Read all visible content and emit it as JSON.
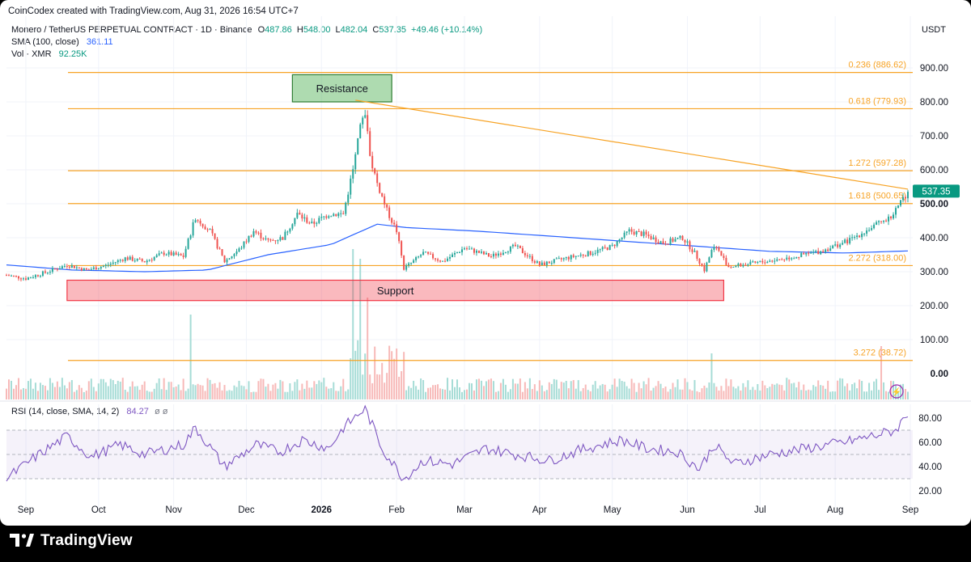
{
  "header": {
    "attribution": "CoinCodex created with TradingView.com, Aug 31, 2026 16:54 UTC+7"
  },
  "legend": {
    "symbol": "Monero / TetherUS PERPETUAL CONTRACT · 1D · Binance",
    "o_label": "O",
    "o": "487.86",
    "h_label": "H",
    "h": "548.00",
    "l_label": "L",
    "l": "482.04",
    "c_label": "C",
    "c": "537.35",
    "change": "+49.46 (+10.14%)",
    "sma_label": "SMA (100, close)",
    "sma_value": "361.11",
    "vol_label": "Vol · XMR",
    "vol_value": "92.25",
    "vol_unit": "K",
    "rsi_label": "RSI (14, close, SMA, 14, 2)",
    "rsi_value": "84.27",
    "rsi_eye": "ø ø"
  },
  "currency": "USDT",
  "branding": {
    "name": "TradingView"
  },
  "colors": {
    "up": "#26a69a",
    "down": "#ef5350",
    "sma": "#2962ff",
    "fib": "#f7a325",
    "rsi": "#7e57c2",
    "support": "#f23645",
    "resistance": "#089981"
  },
  "chart_data": {
    "type": "candlestick",
    "x_ticks": [
      "Sep",
      "Oct",
      "Nov",
      "Dec",
      "2026",
      "Feb",
      "Mar",
      "Apr",
      "May",
      "Jun",
      "Jul",
      "Aug",
      "Sep"
    ],
    "y_ticks": [
      "900.00",
      "800.00",
      "700.00",
      "600.00",
      "500.00",
      "400.00",
      "300.00",
      "200.00",
      "100.00",
      "0.00"
    ],
    "ylim": [
      0,
      900
    ],
    "last_price": "537.35",
    "price_path": [
      [
        "2025-08-24",
        290
      ],
      [
        "2025-09-01",
        280
      ],
      [
        "2025-09-10",
        300
      ],
      [
        "2025-09-18",
        320
      ],
      [
        "2025-09-26",
        305
      ],
      [
        "2025-10-04",
        318
      ],
      [
        "2025-10-12",
        340
      ],
      [
        "2025-10-20",
        330
      ],
      [
        "2025-10-28",
        355
      ],
      [
        "2025-11-05",
        345
      ],
      [
        "2025-11-10",
        460
      ],
      [
        "2025-11-16",
        420
      ],
      [
        "2025-11-22",
        330
      ],
      [
        "2025-11-28",
        365
      ],
      [
        "2025-12-04",
        420
      ],
      [
        "2025-12-10",
        390
      ],
      [
        "2025-12-16",
        400
      ],
      [
        "2025-12-22",
        470
      ],
      [
        "2025-12-28",
        440
      ],
      [
        "2026-01-04",
        470
      ],
      [
        "2026-01-10",
        470
      ],
      [
        "2026-01-14",
        600
      ],
      [
        "2026-01-17",
        720
      ],
      [
        "2026-01-19",
        770
      ],
      [
        "2026-01-21",
        640
      ],
      [
        "2026-01-24",
        560
      ],
      [
        "2026-01-28",
        480
      ],
      [
        "2026-02-01",
        420
      ],
      [
        "2026-02-04",
        310
      ],
      [
        "2026-02-07",
        325
      ],
      [
        "2026-02-12",
        355
      ],
      [
        "2026-02-20",
        330
      ],
      [
        "2026-03-01",
        370
      ],
      [
        "2026-03-12",
        345
      ],
      [
        "2026-03-22",
        375
      ],
      [
        "2026-04-01",
        320
      ],
      [
        "2026-04-12",
        340
      ],
      [
        "2026-04-22",
        355
      ],
      [
        "2026-05-01",
        375
      ],
      [
        "2026-05-08",
        420
      ],
      [
        "2026-05-14",
        410
      ],
      [
        "2026-05-22",
        385
      ],
      [
        "2026-05-30",
        400
      ],
      [
        "2026-06-04",
        355
      ],
      [
        "2026-06-08",
        305
      ],
      [
        "2026-06-12",
        380
      ],
      [
        "2026-06-18",
        315
      ],
      [
        "2026-06-26",
        322
      ],
      [
        "2026-07-06",
        333
      ],
      [
        "2026-07-16",
        345
      ],
      [
        "2026-07-26",
        360
      ],
      [
        "2026-08-06",
        390
      ],
      [
        "2026-08-16",
        430
      ],
      [
        "2026-08-24",
        460
      ],
      [
        "2026-08-31",
        537.35
      ]
    ],
    "sma_100_path": [
      [
        "2025-08-24",
        320
      ],
      [
        "2025-09-20",
        305
      ],
      [
        "2025-10-20",
        300
      ],
      [
        "2025-11-15",
        305
      ],
      [
        "2025-12-10",
        350
      ],
      [
        "2026-01-05",
        380
      ],
      [
        "2026-01-24",
        440
      ],
      [
        "2026-02-05",
        430
      ],
      [
        "2026-03-05",
        420
      ],
      [
        "2026-04-05",
        405
      ],
      [
        "2026-05-05",
        390
      ],
      [
        "2026-06-05",
        375
      ],
      [
        "2026-07-05",
        360
      ],
      [
        "2026-08-05",
        355
      ],
      [
        "2026-08-31",
        361.11
      ]
    ],
    "fibonacci": [
      {
        "label": "0.236 (886.62)",
        "value": 886.62
      },
      {
        "label": "0.618 (779.93)",
        "value": 779.93
      },
      {
        "label": "1.272 (597.28)",
        "value": 597.28
      },
      {
        "label": "1.618 (500.65)",
        "value": 500.65
      },
      {
        "label": "2.272 (318.00)",
        "value": 318.0
      },
      {
        "label": "3.272 (38.72)",
        "value": 38.72
      }
    ],
    "trendline": {
      "from": [
        "2026-01-15",
        805
      ],
      "to": [
        "2026-08-31",
        543
      ]
    },
    "zones": [
      {
        "label": "Resistance",
        "y_low": 800,
        "y_high": 880,
        "x_from": "2025-12-20",
        "x_to": "2026-01-30"
      },
      {
        "label": "Support",
        "y_low": 215,
        "y_high": 275,
        "x_from": "2025-09-18",
        "x_to": "2026-06-16"
      }
    ],
    "volume_spikes": [
      [
        "2025-11-08",
        0.35
      ],
      [
        "2026-01-14",
        0.62
      ],
      [
        "2026-01-17",
        0.58
      ],
      [
        "2026-01-20",
        0.42
      ],
      [
        "2026-06-11",
        0.19
      ],
      [
        "2026-08-20",
        0.22
      ]
    ],
    "rsi": {
      "y_ticks": [
        "80.00",
        "60.00",
        "40.00",
        "20.00"
      ],
      "bands": [
        30,
        50,
        70
      ],
      "last": 84.27,
      "path": [
        [
          "2025-08-24",
          30
        ],
        [
          "2025-09-05",
          48
        ],
        [
          "2025-09-18",
          65
        ],
        [
          "2025-09-28",
          48
        ],
        [
          "2025-10-10",
          58
        ],
        [
          "2025-10-20",
          50
        ],
        [
          "2025-11-05",
          58
        ],
        [
          "2025-11-10",
          72
        ],
        [
          "2025-11-22",
          40
        ],
        [
          "2025-12-05",
          58
        ],
        [
          "2025-12-15",
          52
        ],
        [
          "2025-12-24",
          62
        ],
        [
          "2026-01-04",
          55
        ],
        [
          "2026-01-10",
          72
        ],
        [
          "2026-01-19",
          88
        ],
        [
          "2026-01-26",
          55
        ],
        [
          "2026-02-04",
          30
        ],
        [
          "2026-02-12",
          45
        ],
        [
          "2026-02-24",
          42
        ],
        [
          "2026-03-10",
          55
        ],
        [
          "2026-03-22",
          50
        ],
        [
          "2026-04-05",
          45
        ],
        [
          "2026-04-20",
          55
        ],
        [
          "2026-05-05",
          62
        ],
        [
          "2026-05-15",
          55
        ],
        [
          "2026-05-28",
          52
        ],
        [
          "2026-06-06",
          38
        ],
        [
          "2026-06-12",
          58
        ],
        [
          "2026-06-20",
          42
        ],
        [
          "2026-07-05",
          50
        ],
        [
          "2026-07-20",
          55
        ],
        [
          "2026-08-05",
          60
        ],
        [
          "2026-08-18",
          66
        ],
        [
          "2026-08-26",
          70
        ],
        [
          "2026-08-31",
          84.27
        ]
      ]
    }
  }
}
